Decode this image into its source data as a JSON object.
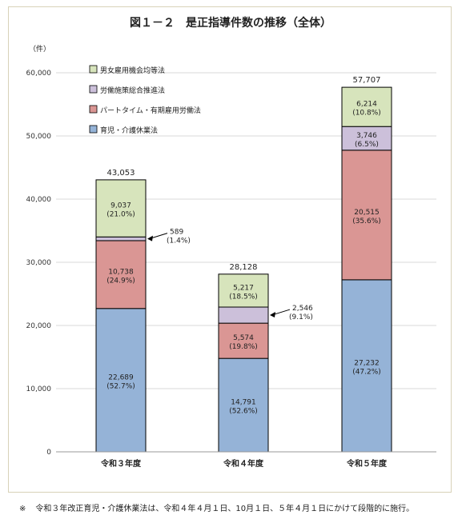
{
  "chart_data": {
    "type": "bar",
    "stacked": true,
    "title": "図１－２　是正指導件数の推移（全体）",
    "ylabel": "（件）",
    "ylim": [
      0,
      60000
    ],
    "yticks": [
      "0",
      "10,000",
      "20,000",
      "30,000",
      "40,000",
      "50,000",
      "60,000"
    ],
    "grid": true,
    "legend_position": "top-left",
    "categories": [
      "令和３年度",
      "令和４年度",
      "令和５年度"
    ],
    "totals": [
      43053,
      28128,
      57707
    ],
    "total_labels": [
      "43,053",
      "28,128",
      "57,707"
    ],
    "series": [
      {
        "name": "育児・介護休業法",
        "color": "#95b3d7",
        "values": [
          22689,
          14791,
          27232
        ],
        "value_labels": [
          "22,689",
          "14,791",
          "27,232"
        ],
        "pct_labels": [
          "(52.7%)",
          "(52.6%)",
          "(47.2%)"
        ]
      },
      {
        "name": "パートタイム・有期雇用労働法",
        "color": "#da9694",
        "values": [
          10738,
          5574,
          20515
        ],
        "value_labels": [
          "10,738",
          "5,574",
          "20,515"
        ],
        "pct_labels": [
          "(24.9%)",
          "(19.8%)",
          "(35.6%)"
        ]
      },
      {
        "name": "労働施策総合推進法",
        "color": "#ccc0da",
        "values": [
          589,
          2546,
          3746
        ],
        "value_labels": [
          "589",
          "2,546",
          "3,746"
        ],
        "pct_labels": [
          "(1.4%)",
          "(9.1%)",
          "(6.5%)"
        ]
      },
      {
        "name": "男女雇用機会均等法",
        "color": "#d7e4bc",
        "values": [
          9037,
          5217,
          6214
        ],
        "value_labels": [
          "9,037",
          "5,217",
          "6,214"
        ],
        "pct_labels": [
          "(21.0%)",
          "(18.5%)",
          "(10.8%)"
        ]
      }
    ]
  },
  "footnote": {
    "mark": "※",
    "text": "令和３年改正育児・介護休業法は、令和４年４月１日、10月１日、５年４月１日にかけて段階的に施行。"
  }
}
